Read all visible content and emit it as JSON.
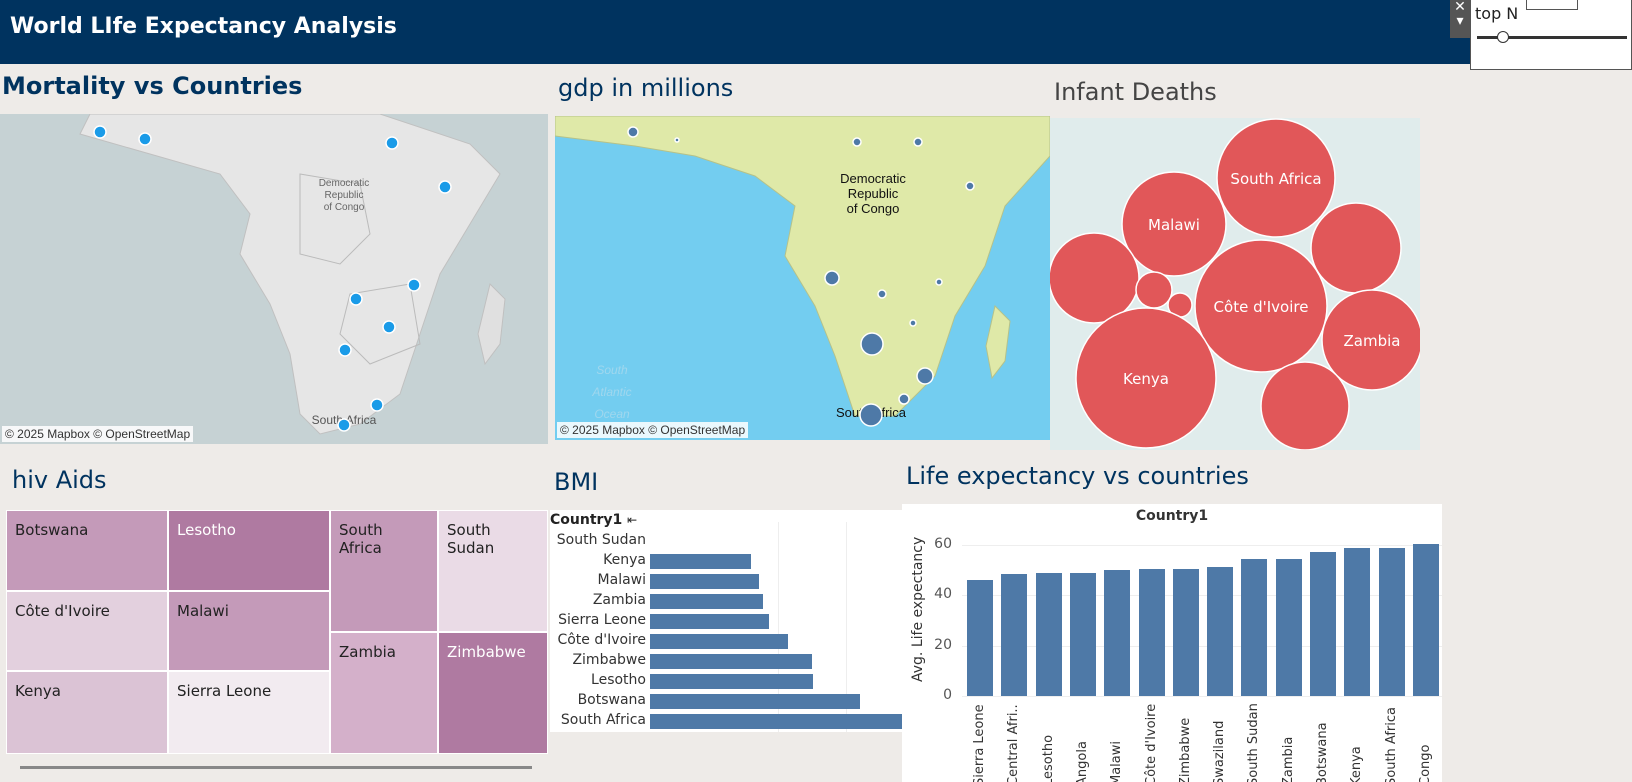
{
  "header": {
    "title": "World LIfe Expectancy Analysis"
  },
  "filter": {
    "label": "top N",
    "close_glyph": "✕",
    "menu_glyph": "▾"
  },
  "colors": {
    "header_bg": "#00335f",
    "bar": "#4e79a7",
    "bubble": "#e15759",
    "map_dot": "#1a9be8",
    "map_dot_gdp": "#4e79a7"
  },
  "mortality": {
    "title": "Mortality vs Countries",
    "map_label": "Democratic\nRepublic\nof Congo",
    "sa_label": "South Africa",
    "attribution": "© 2025 Mapbox © OpenStreetMap"
  },
  "gdp": {
    "title": "gdp in millions",
    "map_label": "Democratic\nRepublic\nof Congo",
    "ocean_label": "South\nAtlantic\nOcean",
    "sa_label": "South Africa",
    "attribution": "© 2025 Mapbox © OpenStreetMap"
  },
  "infant": {
    "title": "Infant Deaths",
    "bubbles": [
      "South Africa",
      "Malawi",
      "Côte d'Ivoire",
      "Zambia",
      "Kenya"
    ]
  },
  "hiv": {
    "title": "hiv Aids",
    "cells": [
      "Botswana",
      "Lesotho",
      "South Africa",
      "South Sudan",
      "Côte d'Ivoire",
      "Malawi",
      "Zambia",
      "Zimbabwe",
      "Kenya",
      "Sierra Leone"
    ]
  },
  "bmi": {
    "title": "BMI",
    "header": "Country1",
    "sort_icon": "sort-descending-icon",
    "countries": [
      "South Sudan",
      "Kenya",
      "Malawi",
      "Zambia",
      "Sierra Leone",
      "Côte d'Ivoire",
      "Zimbabwe",
      "Lesotho",
      "Botswana",
      "South Africa"
    ]
  },
  "chart_data": {
    "type": "bar",
    "title": "Life expectancy vs countries",
    "subtitle": "Country1",
    "ylabel": "Avg. Life expectancy",
    "ylim": [
      0,
      65
    ],
    "yticks": [
      0,
      20,
      40,
      60
    ],
    "categories": [
      "Sierra Leone",
      "Central Afri..",
      "Lesotho",
      "Angola",
      "Malawi",
      "Côte d'Ivoire",
      "Zimbabwe",
      "Swaziland",
      "South Sudan",
      "Zambia",
      "Botswana",
      "Kenya",
      "South Africa",
      "Congo"
    ],
    "values": [
      46.1,
      48.5,
      48.8,
      48.9,
      49.9,
      50.4,
      50.4,
      51.3,
      54.3,
      54.3,
      56.9,
      58.5,
      58.6,
      60.2
    ]
  }
}
